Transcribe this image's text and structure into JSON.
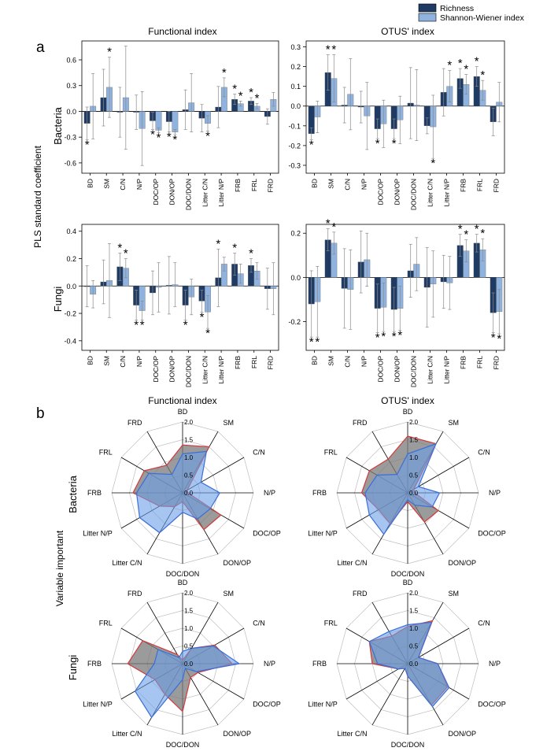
{
  "legend": {
    "items": [
      {
        "label": "Richness",
        "color": "#1f3b63"
      },
      {
        "label": "Shannon-Wiener index",
        "color": "#8fb3de"
      }
    ]
  },
  "panel_letters": {
    "a": "a",
    "b": "b"
  },
  "panel_a": {
    "ylabel": "PLS standard coefficient",
    "row_labels": [
      "Bacteria",
      "Fungi"
    ],
    "col_titles": [
      "Functional index",
      "OTUS' index"
    ]
  },
  "panel_b": {
    "ylabel": "Variable important",
    "row_labels": [
      "Bacteria",
      "Fungi"
    ],
    "col_titles": [
      "Functional index",
      "OTUS' index"
    ]
  },
  "colors": {
    "dark": "#1f3b63",
    "light": "#8fb3de",
    "red_fill": "#7a7a7a",
    "red_line": "#d23b3b",
    "blue_fill": "#6d9ee8",
    "blue_line": "#3a6fd8"
  },
  "chart_data": [
    {
      "type": "bar",
      "title": "Functional index",
      "ylabel": "Bacteria",
      "categories": [
        "BD",
        "SM",
        "C/N",
        "N/P",
        "DOC/OP",
        "DON/OP",
        "DOC/DON",
        "Litter C/N",
        "Litter N/P",
        "FRB",
        "FRL",
        "FRD"
      ],
      "ylim": [
        -0.72,
        0.82
      ],
      "yticks": [
        -0.6,
        -0.3,
        0.0,
        0.3,
        0.6
      ],
      "ytick_labels": [
        "-0.6",
        "-0.3",
        "0.0",
        "0.3",
        "0.6"
      ],
      "series": [
        {
          "name": "Richness",
          "values": [
            -0.14,
            0.16,
            -0.01,
            -0.01,
            -0.11,
            -0.12,
            0.02,
            -0.08,
            0.05,
            0.14,
            0.12,
            -0.06
          ],
          "err": [
            0.19,
            0.33,
            0.29,
            0.2,
            0.1,
            0.12,
            0.23,
            0.16,
            0.24,
            0.06,
            0.04,
            0.09
          ],
          "sig": [
            "below",
            "",
            "",
            "",
            "below",
            "below",
            "",
            "",
            "",
            "above",
            "above",
            ""
          ]
        },
        {
          "name": "Shannon-Wiener index",
          "values": [
            0.06,
            0.28,
            0.16,
            -0.2,
            -0.22,
            -0.24,
            0.1,
            -0.14,
            0.28,
            0.09,
            0.06,
            0.14
          ],
          "err": [
            0.38,
            0.35,
            0.6,
            0.43,
            0.03,
            0.03,
            0.34,
            0.09,
            0.11,
            0.03,
            0.03,
            0.08
          ],
          "sig": [
            "",
            "above",
            "",
            "",
            "below",
            "below",
            "",
            "below",
            "above",
            "above",
            "above",
            ""
          ]
        }
      ]
    },
    {
      "type": "bar",
      "title": "OTUS' index",
      "categories": [
        "BD",
        "SM",
        "C/N",
        "N/P",
        "DOC/OP",
        "DON/OP",
        "DOC/DON",
        "Litter C/N",
        "Litter N/P",
        "FRB",
        "FRL",
        "FRD"
      ],
      "ylim": [
        -0.34,
        0.33
      ],
      "yticks": [
        -0.3,
        -0.2,
        -0.1,
        0.0,
        0.1,
        0.2,
        0.3
      ],
      "ytick_labels": [
        "-0.3",
        "-0.2",
        "-0.1",
        "0.0",
        "0.1",
        "0.2",
        "0.3"
      ],
      "series": [
        {
          "name": "Richness",
          "values": [
            -0.14,
            0.17,
            0.005,
            -0.005,
            -0.115,
            -0.115,
            0.015,
            -0.1,
            0.07,
            0.14,
            0.15,
            -0.08
          ],
          "err": [
            0.03,
            0.09,
            0.09,
            0.08,
            0.05,
            0.05,
            0.18,
            0.04,
            0.12,
            0.05,
            0.05,
            0.07
          ],
          "sig": [
            "below",
            "above",
            "",
            "",
            "below",
            "below",
            "",
            "",
            "",
            "above",
            "above",
            ""
          ]
        },
        {
          "name": "Shannon-Wiener index",
          "values": [
            -0.055,
            0.14,
            0.06,
            -0.05,
            -0.09,
            -0.07,
            0.005,
            -0.105,
            0.1,
            0.11,
            0.08,
            0.02
          ],
          "err": [
            0.08,
            0.12,
            0.18,
            0.17,
            0.12,
            0.12,
            0.18,
            0.16,
            0.08,
            0.05,
            0.05,
            0.1
          ],
          "sig": [
            "",
            "above",
            "",
            "",
            "",
            "",
            "",
            "below",
            "above",
            "above",
            "above",
            ""
          ]
        }
      ]
    },
    {
      "type": "bar",
      "title": "Functional index",
      "ylabel": "Fungi",
      "categories": [
        "BD",
        "SM",
        "C/N",
        "N/P",
        "DOC/OP",
        "DON/OP",
        "DOC/DON",
        "Litter C/N",
        "Litter N/P",
        "FRB",
        "FRL",
        "FRD"
      ],
      "ylim": [
        -0.47,
        0.45
      ],
      "yticks": [
        -0.4,
        -0.2,
        0.0,
        0.2,
        0.4
      ],
      "ytick_labels": [
        "-0.4",
        "-0.2",
        "0.0",
        "0.2",
        "0.4"
      ],
      "series": [
        {
          "name": "Richness",
          "values": [
            -0.002,
            0.03,
            0.14,
            -0.14,
            -0.05,
            0.005,
            -0.14,
            -0.11,
            0.06,
            0.16,
            0.15,
            -0.02
          ],
          "err": [
            0.15,
            0.16,
            0.1,
            0.11,
            0.16,
            0.21,
            0.11,
            0.08,
            0.21,
            0.08,
            0.05,
            0.15
          ],
          "sig": [
            "",
            "",
            "above",
            "below",
            "",
            "",
            "below",
            "below",
            "above",
            "above",
            "above",
            ""
          ]
        },
        {
          "name": "Shannon-Wiener index",
          "values": [
            -0.06,
            0.04,
            0.13,
            -0.18,
            -0.01,
            0.01,
            -0.08,
            -0.19,
            0.16,
            0.09,
            0.11,
            -0.02
          ],
          "err": [
            0.1,
            0.27,
            0.07,
            0.07,
            0.18,
            0.16,
            0.13,
            0.12,
            0.05,
            0.07,
            0.06,
            0.19
          ],
          "sig": [
            "",
            "",
            "above",
            "below",
            "",
            "",
            "",
            "below",
            "",
            "",
            "",
            ""
          ]
        }
      ]
    },
    {
      "type": "bar",
      "title": "OTUS' index",
      "categories": [
        "BD",
        "SM",
        "C/N",
        "N/P",
        "DOC/OP",
        "DON/OP",
        "DOC/DON",
        "Litter C/N",
        "Litter N/P",
        "FRB",
        "FRL",
        "FRD"
      ],
      "ylim": [
        -0.33,
        0.24
      ],
      "yticks": [
        -0.2,
        0.0,
        0.2
      ],
      "ytick_labels": [
        "-0.2",
        "0.0",
        "0.2"
      ],
      "series": [
        {
          "name": "Richness",
          "values": [
            -0.12,
            0.17,
            -0.05,
            0.07,
            -0.14,
            -0.145,
            0.03,
            -0.045,
            -0.02,
            0.145,
            0.155,
            -0.16
          ],
          "err": [
            0.15,
            0.05,
            0.18,
            0.14,
            0.11,
            0.1,
            0.12,
            0.18,
            0.12,
            0.05,
            0.04,
            0.09
          ],
          "sig": [
            "below",
            "above",
            "",
            "",
            "below",
            "below",
            "",
            "",
            "",
            "above",
            "above",
            "below"
          ]
        },
        {
          "name": "Shannon-Wiener index",
          "values": [
            -0.11,
            0.155,
            -0.055,
            0.08,
            -0.135,
            -0.14,
            0.06,
            -0.03,
            -0.025,
            0.12,
            0.125,
            -0.155
          ],
          "err": [
            0.16,
            0.05,
            0.18,
            0.12,
            0.11,
            0.1,
            0.12,
            0.15,
            0.12,
            0.05,
            0.05,
            0.1
          ],
          "sig": [
            "below",
            "above",
            "",
            "",
            "below",
            "below",
            "",
            "",
            "",
            "above",
            "above",
            "below"
          ]
        }
      ]
    },
    {
      "type": "radar",
      "title": "Functional index",
      "ylabel": "Bacteria",
      "categories": [
        "BD",
        "SM",
        "C/N",
        "N/P",
        "DOC/OP",
        "DON/OP",
        "DOC/DON",
        "Litter C/N",
        "Litter N/P",
        "FRB",
        "FRL",
        "FRD"
      ],
      "rlim": [
        0,
        2.0
      ],
      "rticks": [
        "0.0",
        "0.5",
        "1.0",
        "1.5",
        "2.0"
      ],
      "series": [
        {
          "name": "Richness",
          "values": [
            1.35,
            1.5,
            0.15,
            0.15,
            1.25,
            1.2,
            0.25,
            0.45,
            0.75,
            1.4,
            1.25,
            0.9
          ]
        },
        {
          "name": "Shannon-Wiener index",
          "values": [
            1.1,
            1.35,
            0.6,
            1.05,
            0.9,
            0.85,
            0.55,
            1.3,
            1.4,
            1.3,
            1.1,
            0.6
          ]
        }
      ]
    },
    {
      "type": "radar",
      "title": "OTUS' index",
      "categories": [
        "BD",
        "SM",
        "C/N",
        "N/P",
        "DOC/OP",
        "DON/OP",
        "DOC/DON",
        "Litter C/N",
        "Litter N/P",
        "FRB",
        "FRL",
        "FRD"
      ],
      "rlim": [
        0,
        2.0
      ],
      "rticks": [
        "0.0",
        "0.5",
        "1.0",
        "1.5",
        "2.0"
      ],
      "series": [
        {
          "name": "Richness",
          "values": [
            1.6,
            1.6,
            0.2,
            0.2,
            1.0,
            0.95,
            0.25,
            1.0,
            0.95,
            1.3,
            1.25,
            1.1
          ]
        },
        {
          "name": "Shannon-Wiener index",
          "values": [
            1.1,
            1.6,
            0.35,
            0.9,
            0.8,
            0.4,
            0.2,
            1.35,
            1.25,
            1.2,
            1.0,
            0.6
          ]
        }
      ]
    },
    {
      "type": "radar",
      "title": "Functional index",
      "ylabel": "Fungi",
      "categories": [
        "BD",
        "SM",
        "C/N",
        "N/P",
        "DOC/OP",
        "DON/OP",
        "DOC/DON",
        "Litter C/N",
        "Litter N/P",
        "FRB",
        "FRL",
        "FRD"
      ],
      "rlim": [
        0,
        2.0
      ],
      "rticks": [
        "0.0",
        "0.5",
        "1.0",
        "1.5",
        "2.0"
      ],
      "series": [
        {
          "name": "Richness",
          "values": [
            0.1,
            0.5,
            1.05,
            1.4,
            0.5,
            0.45,
            1.35,
            1.0,
            0.9,
            1.55,
            1.3,
            0.3
          ]
        },
        {
          "name": "Shannon-Wiener index",
          "values": [
            0.35,
            0.5,
            1.0,
            1.6,
            0.45,
            0.15,
            0.45,
            1.75,
            1.55,
            0.8,
            0.8,
            0.2
          ]
        }
      ]
    },
    {
      "type": "radar",
      "title": "OTUS' index",
      "categories": [
        "BD",
        "SM",
        "C/N",
        "N/P",
        "DOC/OP",
        "DON/OP",
        "DOC/DON",
        "Litter C/N",
        "Litter N/P",
        "FRB",
        "FRL",
        "FRD"
      ],
      "rlim": [
        0,
        2.0
      ],
      "rticks": [
        "0.0",
        "0.5",
        "1.0",
        "1.5",
        "2.0"
      ],
      "series": [
        {
          "name": "Richness",
          "values": [
            1.05,
            1.4,
            0.35,
            0.85,
            1.3,
            1.35,
            0.35,
            0.15,
            0.3,
            1.0,
            1.25,
            0.9
          ]
        },
        {
          "name": "Shannon-Wiener index",
          "values": [
            1.1,
            1.35,
            0.35,
            0.85,
            1.35,
            1.4,
            0.35,
            0.15,
            0.3,
            0.85,
            1.25,
            1.05
          ]
        }
      ]
    }
  ]
}
